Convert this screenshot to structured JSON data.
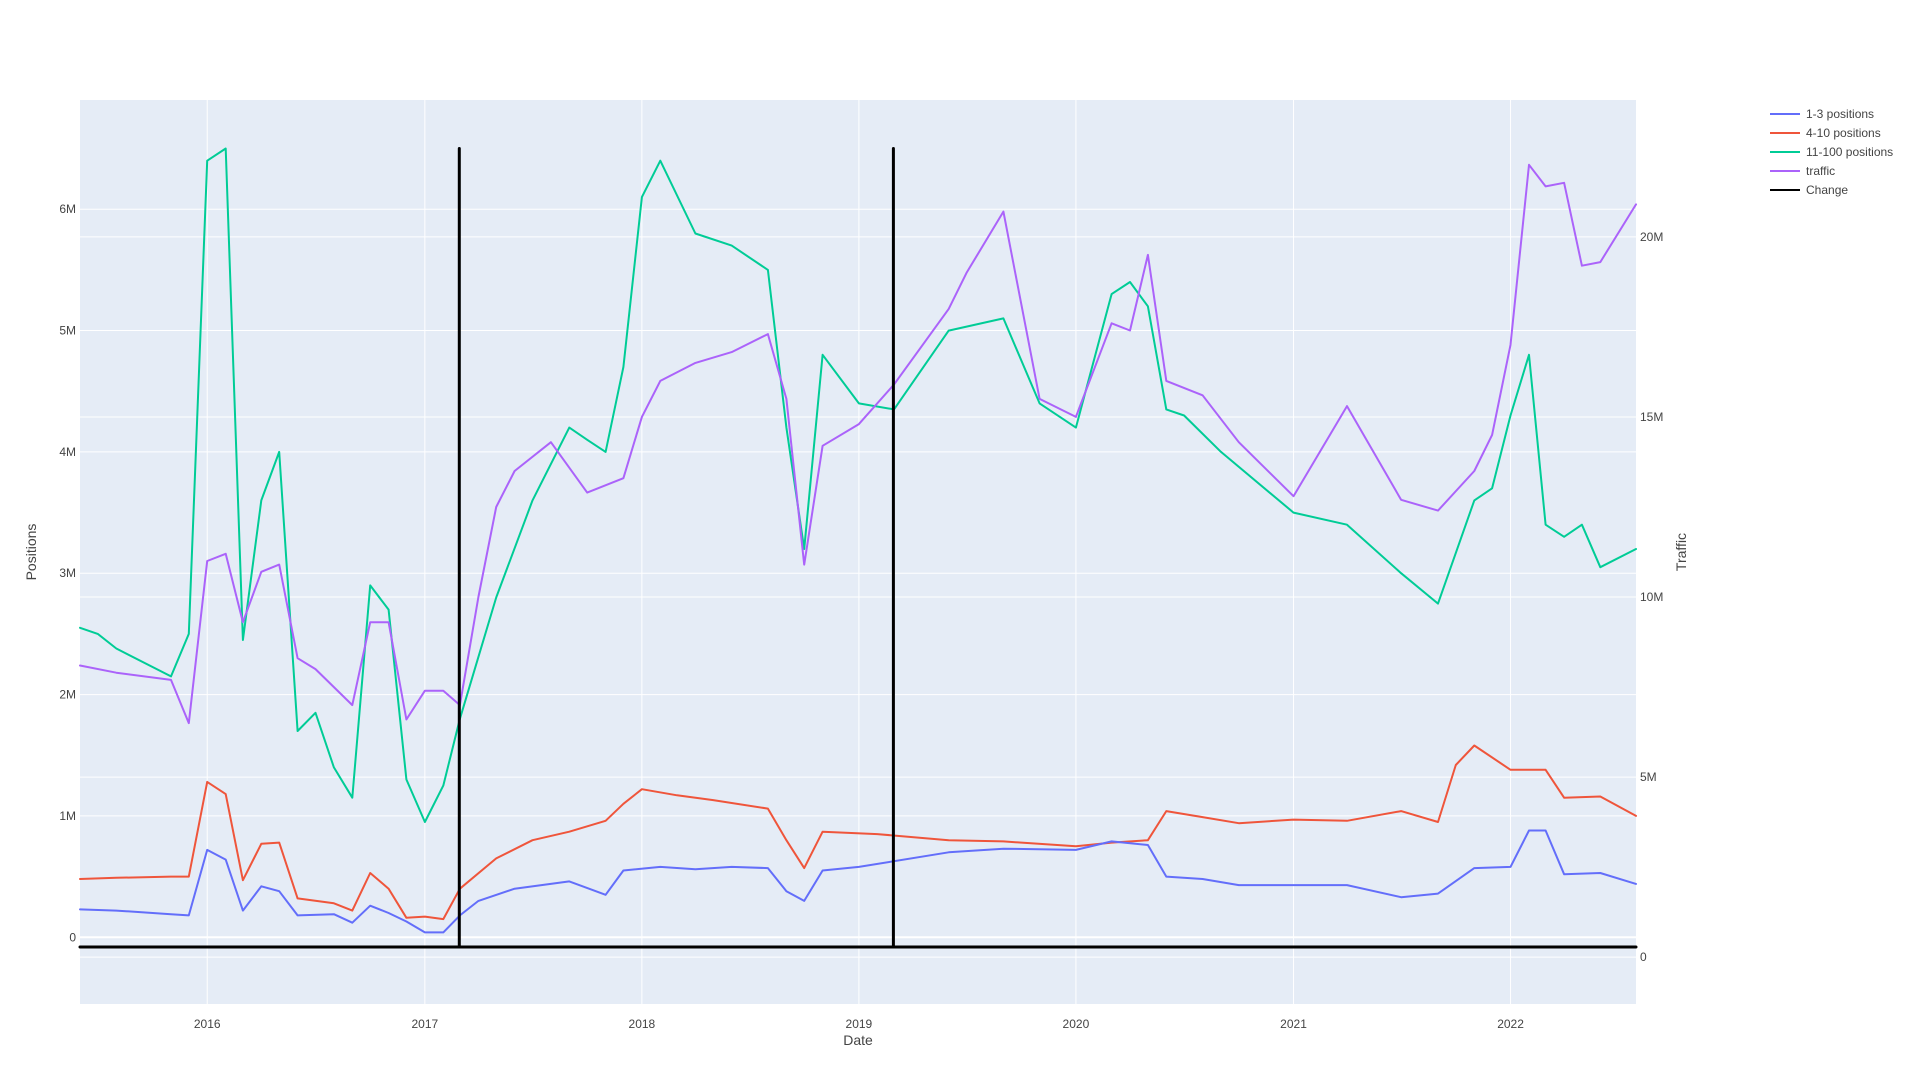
{
  "chart_data": {
    "type": "line",
    "xlabel": "Date",
    "ylabel": "Positions",
    "y2label": "Traffic",
    "xlim": [
      "2015-06-01",
      "2022-07-31"
    ],
    "ylim": [
      -550000,
      6900000
    ],
    "y2lim": [
      -1300000,
      23800000
    ],
    "x_ticks": [
      "2016-01-01",
      "2017-01-01",
      "2018-01-01",
      "2019-01-01",
      "2020-01-01",
      "2021-01-01",
      "2022-01-01"
    ],
    "x_tick_labels": [
      "2016",
      "2017",
      "2018",
      "2019",
      "2020",
      "2021",
      "2022"
    ],
    "y_ticks": [
      0,
      1000000,
      2000000,
      3000000,
      4000000,
      5000000,
      6000000
    ],
    "y_tick_labels": [
      "0",
      "1M",
      "2M",
      "3M",
      "4M",
      "5M",
      "6M"
    ],
    "y2_ticks": [
      0,
      5000000,
      10000000,
      15000000,
      20000000
    ],
    "y2_tick_labels": [
      "0",
      "5M",
      "10M",
      "15M",
      "20M"
    ],
    "grid": true,
    "legend_position": "top-right",
    "legend": [
      "1-3 positions",
      "4-10 positions",
      "11-100 positions",
      "traffic",
      "Change"
    ],
    "colors": {
      "1-3 positions": "#636efa",
      "4-10 positions": "#ef553b",
      "11-100 positions": "#00cc96",
      "traffic": "#ab63fa",
      "Change": "#000000",
      "plot_bg": "#e5ecf6"
    },
    "series": [
      {
        "name": "1-3 positions",
        "axis": "y",
        "x": [
          "2015-06-01",
          "2015-08-01",
          "2015-11-01",
          "2015-12-01",
          "2016-01-01",
          "2016-02-01",
          "2016-03-01",
          "2016-04-01",
          "2016-05-01",
          "2016-06-01",
          "2016-08-01",
          "2016-09-01",
          "2016-10-01",
          "2016-11-01",
          "2016-12-01",
          "2017-01-01",
          "2017-02-01",
          "2017-03-01",
          "2017-04-01",
          "2017-06-01",
          "2017-09-01",
          "2017-11-01",
          "2017-12-01",
          "2018-02-01",
          "2018-04-01",
          "2018-06-01",
          "2018-08-01",
          "2018-09-01",
          "2018-10-01",
          "2018-11-01",
          "2019-01-01",
          "2019-06-01",
          "2019-09-01",
          "2020-01-01",
          "2020-03-01",
          "2020-05-01",
          "2020-06-01",
          "2020-08-01",
          "2020-10-01",
          "2021-01-01",
          "2021-04-01",
          "2021-07-01",
          "2021-09-01",
          "2021-11-01",
          "2022-01-01",
          "2022-02-01",
          "2022-03-01",
          "2022-04-01",
          "2022-06-01",
          "2022-07-31"
        ],
        "values": [
          230000,
          220000,
          190000,
          180000,
          720000,
          640000,
          220000,
          420000,
          380000,
          180000,
          190000,
          120000,
          260000,
          200000,
          130000,
          40000,
          40000,
          180000,
          300000,
          400000,
          460000,
          350000,
          550000,
          580000,
          560000,
          580000,
          570000,
          380000,
          300000,
          550000,
          580000,
          700000,
          730000,
          720000,
          790000,
          760000,
          500000,
          480000,
          430000,
          430000,
          430000,
          330000,
          360000,
          570000,
          580000,
          880000,
          880000,
          520000,
          530000,
          440000
        ]
      },
      {
        "name": "4-10 positions",
        "axis": "y",
        "x": [
          "2015-06-01",
          "2015-08-01",
          "2015-11-01",
          "2015-12-01",
          "2016-01-01",
          "2016-02-01",
          "2016-03-01",
          "2016-04-01",
          "2016-05-01",
          "2016-06-01",
          "2016-08-01",
          "2016-09-01",
          "2016-10-01",
          "2016-11-01",
          "2016-12-01",
          "2017-01-01",
          "2017-02-01",
          "2017-03-01",
          "2017-05-01",
          "2017-07-01",
          "2017-09-01",
          "2017-11-01",
          "2017-12-01",
          "2018-01-01",
          "2018-03-01",
          "2018-05-01",
          "2018-08-01",
          "2018-09-01",
          "2018-10-01",
          "2018-11-01",
          "2019-02-01",
          "2019-06-01",
          "2019-09-01",
          "2020-01-01",
          "2020-03-01",
          "2020-05-01",
          "2020-06-01",
          "2020-08-01",
          "2020-10-01",
          "2021-01-01",
          "2021-04-01",
          "2021-07-01",
          "2021-09-01",
          "2021-10-01",
          "2021-11-01",
          "2022-01-01",
          "2022-03-01",
          "2022-04-01",
          "2022-06-01",
          "2022-07-31"
        ],
        "values": [
          480000,
          490000,
          500000,
          500000,
          1280000,
          1180000,
          470000,
          770000,
          780000,
          320000,
          280000,
          220000,
          530000,
          400000,
          160000,
          170000,
          150000,
          400000,
          650000,
          800000,
          870000,
          960000,
          1100000,
          1220000,
          1170000,
          1130000,
          1060000,
          800000,
          570000,
          870000,
          850000,
          800000,
          790000,
          750000,
          780000,
          800000,
          1040000,
          990000,
          940000,
          970000,
          960000,
          1040000,
          950000,
          1420000,
          1580000,
          1380000,
          1380000,
          1150000,
          1160000,
          1000000
        ]
      },
      {
        "name": "11-100 positions",
        "axis": "y",
        "x": [
          "2015-06-01",
          "2015-07-01",
          "2015-08-01",
          "2015-11-01",
          "2015-12-01",
          "2016-01-01",
          "2016-02-01",
          "2016-03-01",
          "2016-04-01",
          "2016-05-01",
          "2016-06-01",
          "2016-07-01",
          "2016-08-01",
          "2016-09-01",
          "2016-10-01",
          "2016-11-01",
          "2016-12-01",
          "2017-01-01",
          "2017-02-01",
          "2017-03-01",
          "2017-05-01",
          "2017-07-01",
          "2017-09-01",
          "2017-10-01",
          "2017-11-01",
          "2017-12-01",
          "2018-01-01",
          "2018-02-01",
          "2018-04-01",
          "2018-06-01",
          "2018-08-01",
          "2018-09-01",
          "2018-10-01",
          "2018-11-01",
          "2019-01-01",
          "2019-03-01",
          "2019-06-01",
          "2019-09-01",
          "2019-11-01",
          "2020-01-01",
          "2020-03-01",
          "2020-04-01",
          "2020-05-01",
          "2020-06-01",
          "2020-07-01",
          "2020-09-01",
          "2021-01-01",
          "2021-04-01",
          "2021-07-01",
          "2021-09-01",
          "2021-11-01",
          "2021-12-01",
          "2022-01-01",
          "2022-02-01",
          "2022-03-01",
          "2022-04-01",
          "2022-05-01",
          "2022-06-01",
          "2022-07-31"
        ],
        "values": [
          2550000,
          2500000,
          2380000,
          2150000,
          2500000,
          6400000,
          6500000,
          2450000,
          3600000,
          4000000,
          1700000,
          1850000,
          1400000,
          1150000,
          2900000,
          2700000,
          1300000,
          950000,
          1250000,
          1800000,
          2800000,
          3600000,
          4200000,
          4100000,
          4000000,
          4700000,
          6100000,
          6400000,
          5800000,
          5700000,
          5500000,
          4200000,
          3200000,
          4800000,
          4400000,
          4350000,
          5000000,
          5100000,
          4400000,
          4200000,
          5300000,
          5400000,
          5200000,
          4350000,
          4300000,
          4000000,
          3500000,
          3400000,
          3000000,
          2750000,
          3600000,
          3700000,
          4300000,
          4800000,
          3400000,
          3300000,
          3400000,
          3050000,
          3200000
        ]
      },
      {
        "name": "traffic",
        "axis": "y2",
        "x": [
          "2015-06-01",
          "2015-08-01",
          "2015-11-01",
          "2015-12-01",
          "2016-01-01",
          "2016-02-01",
          "2016-03-01",
          "2016-04-01",
          "2016-05-01",
          "2016-06-01",
          "2016-07-01",
          "2016-08-01",
          "2016-09-01",
          "2016-10-01",
          "2016-11-01",
          "2016-12-01",
          "2017-01-01",
          "2017-02-01",
          "2017-03-01",
          "2017-04-01",
          "2017-05-01",
          "2017-06-01",
          "2017-08-01",
          "2017-10-01",
          "2017-12-01",
          "2018-01-01",
          "2018-02-01",
          "2018-04-01",
          "2018-06-01",
          "2018-08-01",
          "2018-09-01",
          "2018-10-01",
          "2018-11-01",
          "2019-01-01",
          "2019-03-01",
          "2019-06-01",
          "2019-07-01",
          "2019-09-01",
          "2019-11-01",
          "2020-01-01",
          "2020-03-01",
          "2020-04-01",
          "2020-05-01",
          "2020-06-01",
          "2020-08-01",
          "2020-10-01",
          "2021-01-01",
          "2021-04-01",
          "2021-07-01",
          "2021-09-01",
          "2021-11-01",
          "2021-12-01",
          "2022-01-01",
          "2022-02-01",
          "2022-03-01",
          "2022-04-01",
          "2022-05-01",
          "2022-06-01",
          "2022-07-31"
        ],
        "values": [
          8100000,
          7900000,
          7700000,
          6500000,
          11000000,
          11200000,
          9300000,
          10700000,
          10900000,
          8300000,
          8000000,
          7500000,
          7000000,
          9300000,
          9300000,
          6600000,
          7400000,
          7400000,
          7000000,
          10000000,
          12500000,
          13500000,
          14300000,
          12900000,
          13300000,
          15000000,
          16000000,
          16500000,
          16800000,
          17300000,
          15500000,
          10900000,
          14200000,
          14800000,
          15900000,
          18000000,
          19000000,
          20700000,
          15500000,
          15000000,
          17600000,
          17400000,
          19500000,
          16000000,
          15600000,
          14300000,
          12800000,
          15300000,
          12700000,
          12400000,
          13500000,
          14500000,
          17000000,
          22000000,
          21400000,
          21500000,
          19200000,
          19300000,
          20900000
        ]
      },
      {
        "name": "Change",
        "axis": "y",
        "x": [
          "2017-02-28",
          "2017-02-28"
        ],
        "values": [
          -80000,
          6500000
        ]
      },
      {
        "name": "Change",
        "axis": "y",
        "x": [
          "2019-02-28",
          "2019-02-28"
        ],
        "values": [
          -80000,
          6500000
        ]
      },
      {
        "name": "Change",
        "axis": "y",
        "x": [
          "2015-06-01",
          "2022-07-31"
        ],
        "values": [
          -80000,
          -80000
        ]
      }
    ]
  }
}
